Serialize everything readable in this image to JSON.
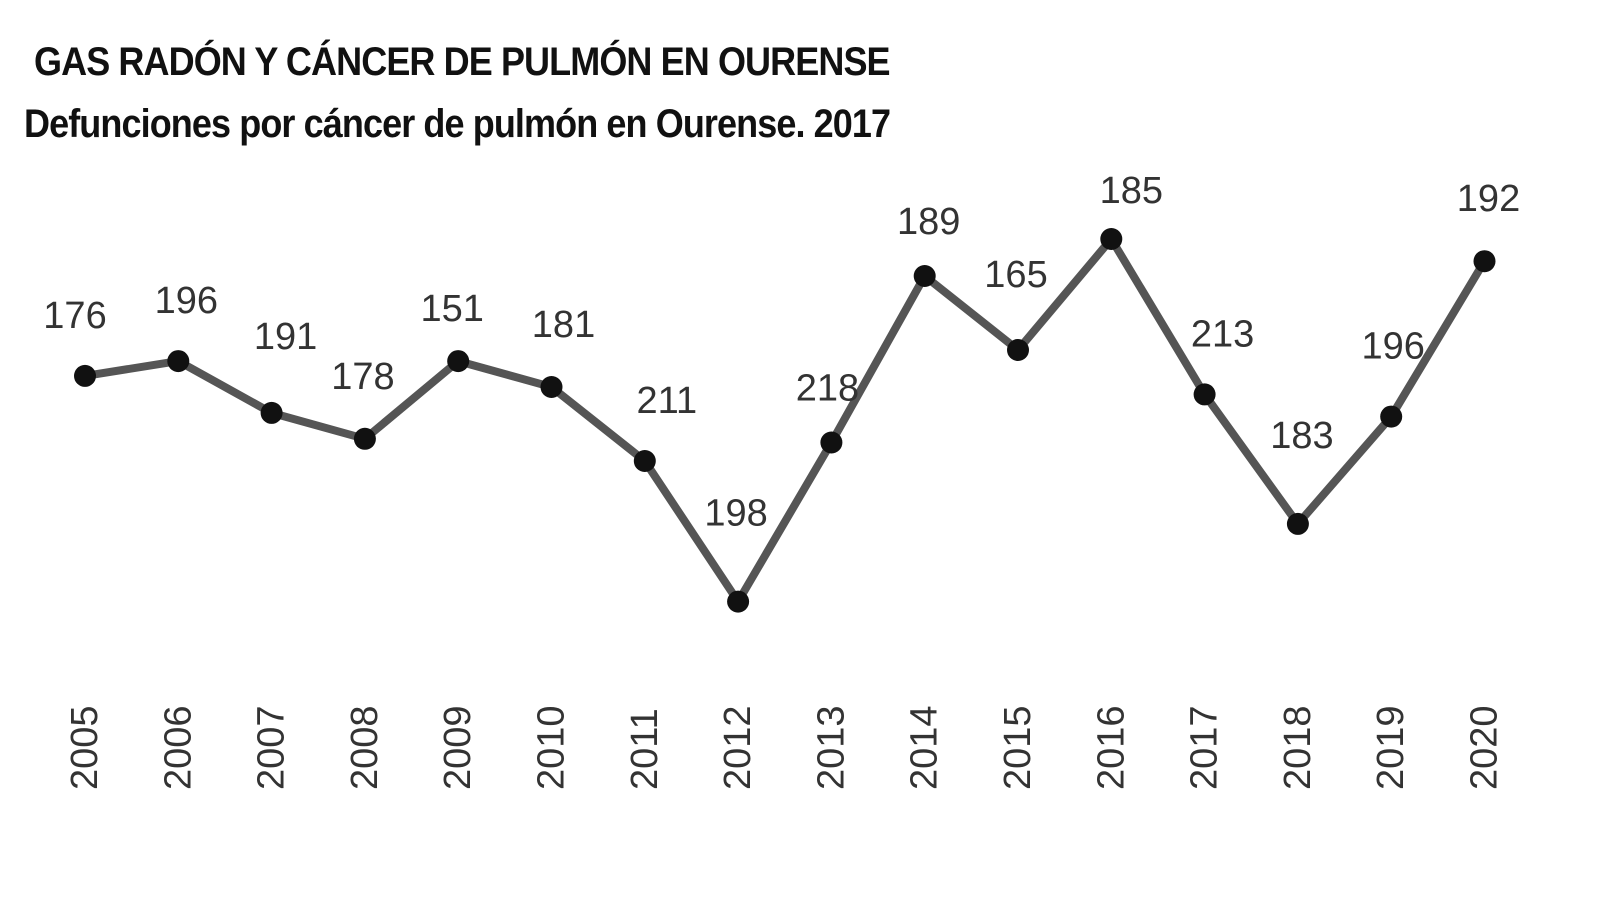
{
  "chart_data": {
    "type": "line",
    "title": "GAS RADÓN Y CÁNCER DE PULMÓN EN OURENSE",
    "subtitle": "Defunciones por cáncer de pulmón en Ourense. 2017",
    "xlabel": "",
    "ylabel": "",
    "grid": false,
    "legend": "none",
    "categories": [
      "2005",
      "2006",
      "2007",
      "2008",
      "2009",
      "2010",
      "2011",
      "2012",
      "2013",
      "2014",
      "2015",
      "2016",
      "2017",
      "2018",
      "2019",
      "2020"
    ],
    "series": [
      {
        "values": [
          176,
          196,
          191,
          178,
          151,
          181,
          211,
          198,
          218,
          189,
          165,
          185,
          213,
          183,
          196,
          192
        ],
        "point_levels": [
          0.63,
          0.67,
          0.53,
          0.46,
          0.67,
          0.6,
          0.4,
          0.02,
          0.45,
          0.9,
          0.7,
          1.0,
          0.58,
          0.23,
          0.52,
          0.94
        ],
        "color": "#555555",
        "marker_color": "#111111"
      }
    ]
  }
}
